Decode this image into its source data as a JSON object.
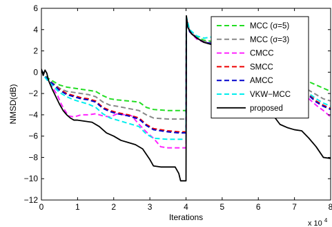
{
  "chart_data": {
    "type": "line",
    "xlabel": "Iterations",
    "ylabel": "NMSD(dB)",
    "x_multiplier": {
      "base": "x 10",
      "exponent": "4"
    },
    "xlim": [
      0,
      8
    ],
    "ylim": [
      -12,
      6
    ],
    "xticks": [
      0,
      1,
      2,
      3,
      4,
      5,
      6,
      7,
      8
    ],
    "xtick_labels": [
      "0",
      "1",
      "2",
      "3",
      "4",
      "5",
      "6",
      "7",
      "8"
    ],
    "yticks": [
      -12,
      -10,
      -8,
      -6,
      -4,
      -2,
      0,
      2,
      4,
      6
    ],
    "ytick_labels": [
      "−12",
      "−10",
      "−8",
      "−6",
      "−4",
      "−2",
      "0",
      "2",
      "4",
      "6"
    ],
    "grid": false,
    "legend_position": "top-right",
    "series": [
      {
        "name": "MCC (σ=5)",
        "color": "#22dd22",
        "dash": "dashed",
        "points": [
          [
            0,
            0.2
          ],
          [
            0.1,
            -0.3
          ],
          [
            0.2,
            -0.6
          ],
          [
            0.35,
            -0.9
          ],
          [
            0.5,
            -1.2
          ],
          [
            0.7,
            -1.4
          ],
          [
            0.9,
            -1.5
          ],
          [
            1.1,
            -1.6
          ],
          [
            1.3,
            -1.7
          ],
          [
            1.5,
            -1.8
          ],
          [
            1.7,
            -2.2
          ],
          [
            1.9,
            -2.5
          ],
          [
            2.1,
            -2.6
          ],
          [
            2.4,
            -2.7
          ],
          [
            2.7,
            -2.8
          ],
          [
            2.9,
            -3.3
          ],
          [
            3.1,
            -3.5
          ],
          [
            3.5,
            -3.6
          ],
          [
            3.8,
            -3.6
          ],
          [
            4.0,
            -3.6
          ],
          [
            4.01,
            5.0
          ],
          [
            4.1,
            3.8
          ],
          [
            4.3,
            3.3
          ],
          [
            4.5,
            3.0
          ],
          [
            4.7,
            2.9
          ],
          [
            4.8,
            3.0
          ],
          [
            5.0,
            2.1
          ],
          [
            5.3,
            1.6
          ],
          [
            5.6,
            1.2
          ],
          [
            6.0,
            0.9
          ],
          [
            6.4,
            0.6
          ],
          [
            6.7,
            0.5
          ],
          [
            7.0,
            0.2
          ],
          [
            7.2,
            -0.3
          ],
          [
            7.4,
            -0.9
          ],
          [
            7.6,
            -1.2
          ],
          [
            7.8,
            -1.5
          ],
          [
            8.0,
            -1.8
          ]
        ]
      },
      {
        "name": "MCC (σ=3)",
        "color": "#888888",
        "dash": "dashed",
        "points": [
          [
            0,
            0.2
          ],
          [
            0.1,
            -0.4
          ],
          [
            0.2,
            -0.7
          ],
          [
            0.35,
            -1.1
          ],
          [
            0.5,
            -1.5
          ],
          [
            0.7,
            -1.8
          ],
          [
            0.9,
            -1.9
          ],
          [
            1.1,
            -2.0
          ],
          [
            1.3,
            -2.1
          ],
          [
            1.5,
            -2.3
          ],
          [
            1.7,
            -2.8
          ],
          [
            1.9,
            -3.1
          ],
          [
            2.1,
            -3.2
          ],
          [
            2.4,
            -3.4
          ],
          [
            2.7,
            -3.6
          ],
          [
            2.9,
            -4.0
          ],
          [
            3.1,
            -4.3
          ],
          [
            3.5,
            -4.4
          ],
          [
            3.8,
            -4.4
          ],
          [
            4.0,
            -4.4
          ],
          [
            4.01,
            5.1
          ],
          [
            4.1,
            3.9
          ],
          [
            4.3,
            3.2
          ],
          [
            4.5,
            2.9
          ],
          [
            4.7,
            2.8
          ],
          [
            4.8,
            2.9
          ],
          [
            5.0,
            1.9
          ],
          [
            5.3,
            1.3
          ],
          [
            5.6,
            0.9
          ],
          [
            6.0,
            0.5
          ],
          [
            6.4,
            0.1
          ],
          [
            6.7,
            -0.1
          ],
          [
            7.0,
            -0.4
          ],
          [
            7.2,
            -1.0
          ],
          [
            7.4,
            -1.7
          ],
          [
            7.6,
            -2.1
          ],
          [
            7.8,
            -2.5
          ],
          [
            8.0,
            -2.7
          ]
        ]
      },
      {
        "name": "CMCC",
        "color": "#ff22ff",
        "dash": "dashed",
        "points": [
          [
            0,
            0.2
          ],
          [
            0.1,
            -0.4
          ],
          [
            0.2,
            -0.9
          ],
          [
            0.3,
            -1.4
          ],
          [
            0.45,
            -2.2
          ],
          [
            0.55,
            -3.0
          ],
          [
            0.65,
            -3.6
          ],
          [
            0.75,
            -4.1
          ],
          [
            0.9,
            -4.2
          ],
          [
            1.1,
            -4.0
          ],
          [
            1.3,
            -4.0
          ],
          [
            1.5,
            -3.9
          ],
          [
            1.7,
            -4.1
          ],
          [
            1.9,
            -4.2
          ],
          [
            2.1,
            -3.9
          ],
          [
            2.3,
            -4.0
          ],
          [
            2.5,
            -4.1
          ],
          [
            2.7,
            -4.9
          ],
          [
            2.9,
            -5.6
          ],
          [
            3.1,
            -6.2
          ],
          [
            3.3,
            -7.0
          ],
          [
            3.5,
            -7.1
          ],
          [
            3.8,
            -7.1
          ],
          [
            4.0,
            -7.1
          ],
          [
            4.01,
            5.0
          ],
          [
            4.1,
            3.8
          ],
          [
            4.3,
            3.1
          ],
          [
            4.5,
            2.8
          ],
          [
            4.7,
            2.7
          ],
          [
            4.8,
            2.8
          ],
          [
            5.0,
            1.8
          ],
          [
            5.3,
            1.2
          ],
          [
            5.6,
            0.8
          ],
          [
            6.0,
            0.3
          ],
          [
            6.4,
            -0.2
          ],
          [
            6.7,
            -0.4
          ],
          [
            7.0,
            -0.7
          ],
          [
            7.2,
            -1.5
          ],
          [
            7.4,
            -2.5
          ],
          [
            7.6,
            -3.1
          ],
          [
            7.8,
            -3.6
          ],
          [
            8.0,
            -4.2
          ]
        ]
      },
      {
        "name": "SMCC",
        "color": "#ee0000",
        "dash": "dashed",
        "points": [
          [
            0,
            0.2
          ],
          [
            0.1,
            -0.4
          ],
          [
            0.2,
            -0.8
          ],
          [
            0.35,
            -1.2
          ],
          [
            0.5,
            -1.6
          ],
          [
            0.7,
            -2.0
          ],
          [
            0.9,
            -2.2
          ],
          [
            1.1,
            -2.4
          ],
          [
            1.3,
            -2.5
          ],
          [
            1.5,
            -2.7
          ],
          [
            1.7,
            -3.3
          ],
          [
            1.9,
            -3.6
          ],
          [
            2.1,
            -3.8
          ],
          [
            2.4,
            -4.0
          ],
          [
            2.7,
            -4.3
          ],
          [
            2.9,
            -4.9
          ],
          [
            3.1,
            -5.3
          ],
          [
            3.5,
            -5.5
          ],
          [
            3.8,
            -5.6
          ],
          [
            4.0,
            -5.6
          ],
          [
            4.01,
            5.1
          ],
          [
            4.1,
            3.9
          ],
          [
            4.3,
            3.2
          ],
          [
            4.5,
            2.8
          ],
          [
            4.7,
            2.7
          ],
          [
            4.8,
            2.8
          ],
          [
            5.0,
            1.8
          ],
          [
            5.3,
            1.2
          ],
          [
            5.6,
            0.8
          ],
          [
            6.0,
            0.4
          ],
          [
            6.4,
            -0.1
          ],
          [
            6.7,
            -0.3
          ],
          [
            7.0,
            -0.6
          ],
          [
            7.2,
            -1.3
          ],
          [
            7.4,
            -2.1
          ],
          [
            7.6,
            -2.7
          ],
          [
            7.8,
            -3.1
          ],
          [
            8.0,
            -3.4
          ]
        ]
      },
      {
        "name": "AMCC",
        "color": "#0000cc",
        "dash": "dashed",
        "points": [
          [
            0,
            0.2
          ],
          [
            0.1,
            -0.4
          ],
          [
            0.2,
            -0.8
          ],
          [
            0.35,
            -1.2
          ],
          [
            0.5,
            -1.7
          ],
          [
            0.7,
            -2.1
          ],
          [
            0.9,
            -2.3
          ],
          [
            1.1,
            -2.5
          ],
          [
            1.3,
            -2.6
          ],
          [
            1.5,
            -2.8
          ],
          [
            1.7,
            -3.4
          ],
          [
            1.9,
            -3.7
          ],
          [
            2.1,
            -3.9
          ],
          [
            2.4,
            -4.1
          ],
          [
            2.7,
            -4.4
          ],
          [
            2.9,
            -5.0
          ],
          [
            3.1,
            -5.4
          ],
          [
            3.5,
            -5.6
          ],
          [
            3.8,
            -5.7
          ],
          [
            4.0,
            -5.7
          ],
          [
            4.01,
            5.0
          ],
          [
            4.1,
            3.8
          ],
          [
            4.3,
            3.2
          ],
          [
            4.5,
            2.8
          ],
          [
            4.7,
            2.7
          ],
          [
            4.8,
            2.8
          ],
          [
            5.0,
            1.8
          ],
          [
            5.3,
            1.2
          ],
          [
            5.6,
            0.8
          ],
          [
            6.0,
            0.3
          ],
          [
            6.4,
            -0.2
          ],
          [
            6.7,
            -0.4
          ],
          [
            7.0,
            -0.7
          ],
          [
            7.2,
            -1.4
          ],
          [
            7.4,
            -2.2
          ],
          [
            7.6,
            -2.8
          ],
          [
            7.8,
            -3.2
          ],
          [
            8.0,
            -3.5
          ]
        ]
      },
      {
        "name": "VKW−MCC",
        "color": "#00eeee",
        "dash": "dashed",
        "points": [
          [
            0,
            0.2
          ],
          [
            0.1,
            -0.5
          ],
          [
            0.2,
            -0.9
          ],
          [
            0.35,
            -1.4
          ],
          [
            0.5,
            -1.9
          ],
          [
            0.7,
            -2.3
          ],
          [
            0.9,
            -2.6
          ],
          [
            1.1,
            -2.8
          ],
          [
            1.3,
            -3.0
          ],
          [
            1.5,
            -3.3
          ],
          [
            1.7,
            -3.9
          ],
          [
            1.9,
            -4.3
          ],
          [
            2.1,
            -4.5
          ],
          [
            2.4,
            -4.8
          ],
          [
            2.7,
            -5.1
          ],
          [
            2.9,
            -5.8
          ],
          [
            3.1,
            -6.2
          ],
          [
            3.5,
            -6.3
          ],
          [
            3.8,
            -6.3
          ],
          [
            4.0,
            -6.3
          ],
          [
            4.01,
            5.2
          ],
          [
            4.1,
            4.0
          ],
          [
            4.3,
            3.4
          ],
          [
            4.5,
            3.2
          ],
          [
            4.7,
            3.3
          ],
          [
            4.8,
            3.5
          ],
          [
            5.0,
            2.4
          ],
          [
            5.3,
            1.6
          ],
          [
            5.6,
            1.1
          ],
          [
            6.0,
            0.5
          ],
          [
            6.4,
            -0.1
          ],
          [
            6.7,
            -0.3
          ],
          [
            7.0,
            -0.6
          ],
          [
            7.2,
            -1.2
          ],
          [
            7.4,
            -2.0
          ],
          [
            7.6,
            -2.5
          ],
          [
            7.8,
            -2.9
          ],
          [
            8.0,
            -3.2
          ]
        ]
      },
      {
        "name": "proposed",
        "color": "#000000",
        "dash": "solid",
        "points": [
          [
            0,
            0.3
          ],
          [
            0.05,
            -0.3
          ],
          [
            0.1,
            0.2
          ],
          [
            0.15,
            -0.1
          ],
          [
            0.2,
            -0.8
          ],
          [
            0.3,
            -1.6
          ],
          [
            0.4,
            -2.3
          ],
          [
            0.5,
            -3.0
          ],
          [
            0.6,
            -3.6
          ],
          [
            0.7,
            -4.0
          ],
          [
            0.8,
            -4.3
          ],
          [
            0.9,
            -4.5
          ],
          [
            1.0,
            -4.5
          ],
          [
            1.2,
            -4.6
          ],
          [
            1.4,
            -4.7
          ],
          [
            1.6,
            -5.1
          ],
          [
            1.8,
            -5.7
          ],
          [
            2.0,
            -6.0
          ],
          [
            2.2,
            -6.4
          ],
          [
            2.4,
            -6.6
          ],
          [
            2.6,
            -6.8
          ],
          [
            2.8,
            -7.2
          ],
          [
            3.0,
            -8.2
          ],
          [
            3.1,
            -8.8
          ],
          [
            3.3,
            -8.9
          ],
          [
            3.5,
            -8.9
          ],
          [
            3.7,
            -8.9
          ],
          [
            3.8,
            -9.5
          ],
          [
            3.85,
            -10.2
          ],
          [
            4.0,
            -10.2
          ],
          [
            4.01,
            5.3
          ],
          [
            4.05,
            4.2
          ],
          [
            4.15,
            3.6
          ],
          [
            4.3,
            3.2
          ],
          [
            4.5,
            2.8
          ],
          [
            4.7,
            2.6
          ],
          [
            4.8,
            2.7
          ],
          [
            5.0,
            1.7
          ],
          [
            5.2,
            1.0
          ],
          [
            5.4,
            0.5
          ],
          [
            5.6,
            0.0
          ],
          [
            5.8,
            -0.5
          ],
          [
            6.0,
            -1.5
          ],
          [
            6.2,
            -3.0
          ],
          [
            6.4,
            -4.0
          ],
          [
            6.6,
            -4.9
          ],
          [
            6.8,
            -5.2
          ],
          [
            7.0,
            -5.4
          ],
          [
            7.2,
            -5.5
          ],
          [
            7.4,
            -6.2
          ],
          [
            7.6,
            -7.0
          ],
          [
            7.8,
            -8.0
          ],
          [
            8.0,
            -8.1
          ]
        ]
      }
    ]
  }
}
